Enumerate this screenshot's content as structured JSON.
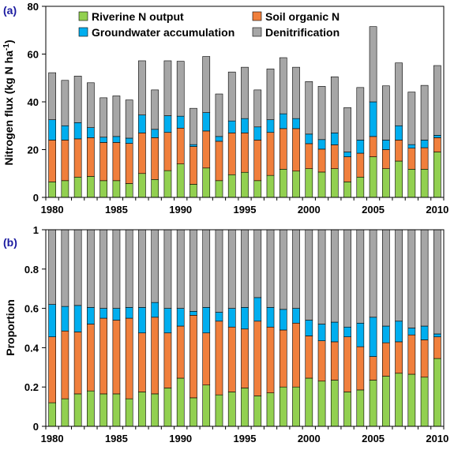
{
  "chart_data": [
    {
      "panel_label": "(a)",
      "type": "bar",
      "stacked": true,
      "ylabel": "Nitrogen flux (kg N ha",
      "ylabel_sup": "-1",
      "ylabel_close": ")",
      "ylim": [
        0,
        80
      ],
      "yticks": [
        "0",
        "20",
        "40",
        "60",
        "80"
      ],
      "x": [
        1980,
        1981,
        1982,
        1983,
        1984,
        1985,
        1986,
        1987,
        1988,
        1989,
        1990,
        1991,
        1992,
        1993,
        1994,
        1995,
        1996,
        1997,
        1998,
        1999,
        2000,
        2001,
        2002,
        2003,
        2004,
        2005,
        2006,
        2007,
        2008,
        2009,
        2010
      ],
      "xticks": [
        "1980",
        "1985",
        "1990",
        "1995",
        "2000",
        "2005",
        "2010"
      ],
      "legend_position": "top",
      "series": [
        {
          "name": "Riverine N output",
          "color": "#92d050",
          "values": [
            6.5,
            7.0,
            8.5,
            8.8,
            7.0,
            7.0,
            5.8,
            10.0,
            7.5,
            11.2,
            14.0,
            5.5,
            12.3,
            7.0,
            9.5,
            10.5,
            7.0,
            9.2,
            11.8,
            11.0,
            12.0,
            10.6,
            12.0,
            6.5,
            8.5,
            17.0,
            12.0,
            15.2,
            11.8,
            11.8,
            19.0
          ]
        },
        {
          "name": "Soil organic N",
          "color": "#f07f3c",
          "values": [
            17.5,
            17.0,
            16.0,
            16.2,
            16.0,
            16.0,
            16.8,
            17.0,
            17.5,
            16.0,
            15.0,
            15.8,
            15.5,
            16.5,
            17.5,
            16.5,
            17.0,
            18.0,
            17.0,
            17.8,
            10.5,
            9.6,
            10.0,
            10.5,
            10.0,
            8.5,
            8.0,
            8.8,
            8.8,
            9.0,
            6.0
          ]
        },
        {
          "name": "Groundwater accumulation",
          "color": "#00aeef",
          "values": [
            8.5,
            6.0,
            6.8,
            4.2,
            2.2,
            2.5,
            2.2,
            7.5,
            3.5,
            7.0,
            5.0,
            0.8,
            7.7,
            2.0,
            5.0,
            6.0,
            5.5,
            5.3,
            6.2,
            4.2,
            4.0,
            4.0,
            5.0,
            2.0,
            5.5,
            14.5,
            4.0,
            6.0,
            1.5,
            3.2,
            1.0
          ]
        },
        {
          "name": "Denitrification",
          "color": "#a6a6a6",
          "values": [
            19.7,
            19.0,
            19.5,
            18.8,
            16.5,
            17.0,
            16.0,
            22.7,
            16.5,
            23.0,
            23.0,
            15.2,
            23.5,
            17.8,
            20.5,
            21.5,
            15.5,
            21.3,
            23.5,
            21.5,
            22.0,
            22.3,
            23.5,
            18.6,
            22.0,
            31.5,
            22.7,
            26.3,
            22.0,
            22.9,
            29.2
          ]
        }
      ]
    },
    {
      "panel_label": "(b)",
      "type": "bar",
      "stacked": true,
      "ylabel": "Proportion",
      "ylim": [
        0,
        1
      ],
      "yticks": [
        "0",
        "0.2",
        "0.4",
        "0.6",
        "0.8",
        "1"
      ],
      "x": [
        1980,
        1981,
        1982,
        1983,
        1984,
        1985,
        1986,
        1987,
        1988,
        1989,
        1990,
        1991,
        1992,
        1993,
        1994,
        1995,
        1996,
        1997,
        1998,
        1999,
        2000,
        2001,
        2002,
        2003,
        2004,
        2005,
        2006,
        2007,
        2008,
        2009,
        2010
      ],
      "xticks": [
        "1980",
        "1985",
        "1990",
        "1995",
        "2000",
        "2005",
        "2010"
      ],
      "series": [
        {
          "name": "Riverine N output",
          "color": "#92d050",
          "values": [
            0.12,
            0.14,
            0.165,
            0.18,
            0.165,
            0.165,
            0.14,
            0.175,
            0.165,
            0.195,
            0.245,
            0.145,
            0.21,
            0.16,
            0.175,
            0.195,
            0.155,
            0.17,
            0.2,
            0.2,
            0.245,
            0.23,
            0.235,
            0.175,
            0.185,
            0.235,
            0.255,
            0.27,
            0.265,
            0.25,
            0.345
          ]
        },
        {
          "name": "Soil organic N",
          "color": "#f07f3c",
          "values": [
            0.335,
            0.345,
            0.315,
            0.34,
            0.385,
            0.375,
            0.41,
            0.3,
            0.39,
            0.28,
            0.265,
            0.42,
            0.265,
            0.375,
            0.33,
            0.3,
            0.38,
            0.335,
            0.29,
            0.325,
            0.215,
            0.205,
            0.195,
            0.28,
            0.22,
            0.12,
            0.17,
            0.16,
            0.2,
            0.19,
            0.11
          ]
        },
        {
          "name": "Groundwater accumulation",
          "color": "#00aeef",
          "values": [
            0.165,
            0.125,
            0.135,
            0.085,
            0.05,
            0.06,
            0.055,
            0.13,
            0.075,
            0.125,
            0.09,
            0.02,
            0.13,
            0.045,
            0.095,
            0.11,
            0.12,
            0.1,
            0.105,
            0.075,
            0.08,
            0.085,
            0.1,
            0.05,
            0.12,
            0.2,
            0.085,
            0.105,
            0.035,
            0.07,
            0.015
          ]
        },
        {
          "name": "Denitrification",
          "color": "#a6a6a6",
          "values": [
            0.38,
            0.39,
            0.385,
            0.395,
            0.4,
            0.4,
            0.395,
            0.395,
            0.37,
            0.4,
            0.4,
            0.415,
            0.395,
            0.42,
            0.4,
            0.395,
            0.345,
            0.395,
            0.405,
            0.4,
            0.46,
            0.48,
            0.47,
            0.495,
            0.475,
            0.445,
            0.49,
            0.465,
            0.5,
            0.49,
            0.53
          ]
        }
      ]
    }
  ]
}
